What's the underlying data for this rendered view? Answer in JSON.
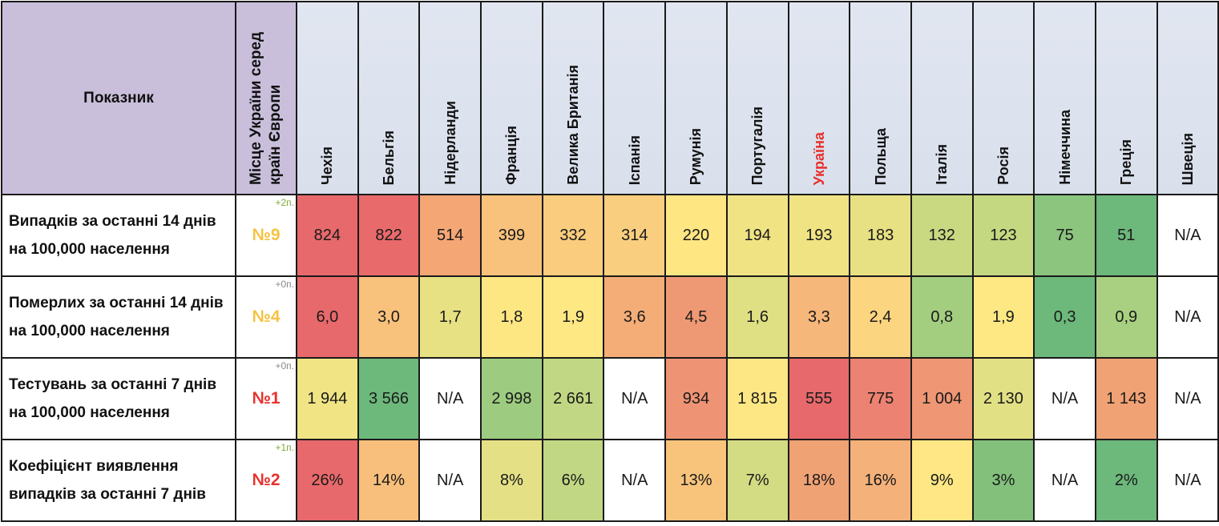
{
  "header": {
    "indicator": "Показник",
    "rank": "Місце України серед країн Європи"
  },
  "colors": {
    "header_indicator_bg": "#c9bfdb",
    "header_country_bg": "#dde3ee",
    "highlight_country": "#e8312c",
    "rank_yellow": "#f5c342",
    "rank_red": "#e8312c",
    "change_green": "#7fa83a",
    "change_gray": "#8a8a8a"
  },
  "chart_data": {
    "type": "heatmap",
    "categories": [
      "Чехія",
      "Бельгія",
      "Нідерланди",
      "Франція",
      "Велика Британія",
      "Іспанія",
      "Румунія",
      "Португалія",
      "Україна",
      "Польща",
      "Італія",
      "Росія",
      "Німеччина",
      "Греція",
      "Швеція"
    ],
    "highlight_category": "Україна",
    "rows": [
      {
        "label": "Випадків за останні 14 днів на 100,000 населення",
        "rank": "№9",
        "rank_color": "#f5c342",
        "change": "+2п.",
        "change_color": "#7fa83a",
        "values": [
          "824",
          "822",
          "514",
          "399",
          "332",
          "314",
          "220",
          "194",
          "193",
          "183",
          "132",
          "123",
          "75",
          "51",
          "N/A"
        ],
        "cell_colors": [
          "#e8696b",
          "#e86a6b",
          "#f4a675",
          "#f8c27c",
          "#f9cc7e",
          "#f9cf7f",
          "#fee683",
          "#f0e384",
          "#efe384",
          "#e8e183",
          "#c9d982",
          "#c4d881",
          "#8cc57e",
          "#6db87b",
          "#ffffff"
        ]
      },
      {
        "label": "Померлих за останні 14 днів на 100,000 населення",
        "rank": "№4",
        "rank_color": "#f5c342",
        "change": "+0п.",
        "change_color": "#8a8a8a",
        "values": [
          "6,0",
          "3,0",
          "1,7",
          "1,8",
          "1,9",
          "3,6",
          "4,5",
          "1,6",
          "3,3",
          "2,4",
          "0,8",
          "1,9",
          "0,3",
          "0,9",
          "N/A"
        ],
        "cell_colors": [
          "#e8696b",
          "#f8c17c",
          "#e7e183",
          "#fde783",
          "#fee883",
          "#f4ad77",
          "#ef9974",
          "#dfdf83",
          "#f6b77a",
          "#fcd580",
          "#a3ce80",
          "#fee883",
          "#6db87b",
          "#a9d080",
          "#ffffff"
        ]
      },
      {
        "label": "Тестувань за останні 7 днів на 100,000 населення",
        "rank": "№1",
        "rank_color": "#e8312c",
        "change": "+0п.",
        "change_color": "#8a8a8a",
        "values": [
          "1 944",
          "3 566",
          "N/A",
          "2 998",
          "2 661",
          "N/A",
          "934",
          "1 815",
          "555",
          "775",
          "1 004",
          "2 130",
          "N/A",
          "1 143",
          "N/A"
        ],
        "cell_colors": [
          "#f0e485",
          "#6db87b",
          "#ffffff",
          "#9dcc80",
          "#c1d783",
          "#ffffff",
          "#ee9474",
          "#fde784",
          "#e8696b",
          "#ec8271",
          "#ef9674",
          "#e2e084",
          "#ffffff",
          "#f0a274",
          "#ffffff"
        ]
      },
      {
        "label": "Коефіцієнт виявлення випадків за останні 7 днів",
        "rank": "№2",
        "rank_color": "#e8312c",
        "change": "+1п.",
        "change_color": "#7fa83a",
        "values": [
          "26%",
          "14%",
          "N/A",
          "8%",
          "6%",
          "N/A",
          "13%",
          "7%",
          "18%",
          "16%",
          "9%",
          "3%",
          "N/A",
          "2%",
          "N/A"
        ],
        "cell_colors": [
          "#e8696b",
          "#f7bf7b",
          "#ffffff",
          "#e4e085",
          "#c1d783",
          "#ffffff",
          "#f8c47c",
          "#d3db83",
          "#efa274",
          "#f4b17a",
          "#fee784",
          "#82c07c",
          "#ffffff",
          "#6db87b",
          "#ffffff"
        ]
      }
    ]
  }
}
